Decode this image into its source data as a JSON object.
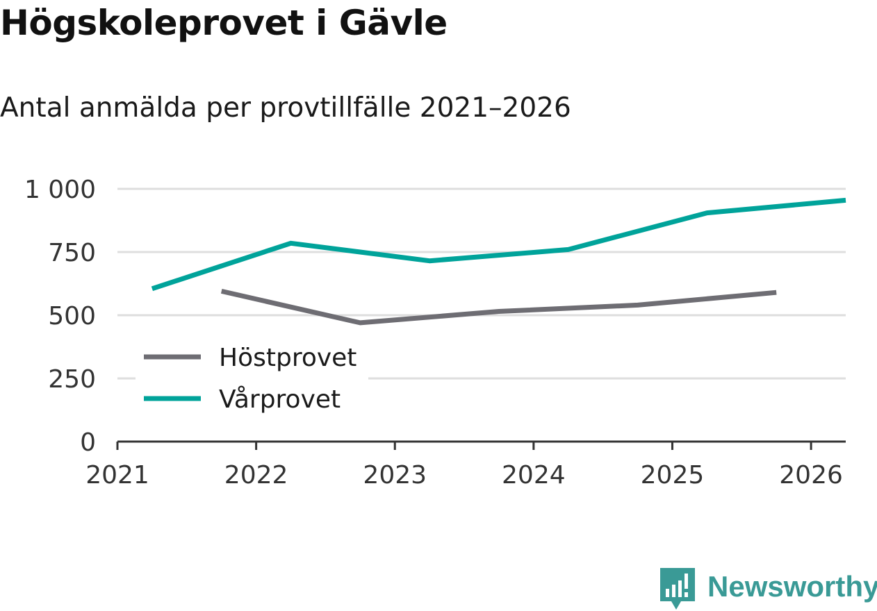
{
  "title": "Högskoleprovet i Gävle",
  "subtitle": "Antal anmälda per provtillfälle 2021–2026",
  "brand": {
    "name": "Newsworthy",
    "icon": "newsworthy-logo-icon",
    "color": "#3a9a96"
  },
  "chart_data": {
    "type": "line",
    "title": "Högskoleprovet i Gävle",
    "subtitle": "Antal anmälda per provtillfälle 2021–2026",
    "xlabel": "",
    "ylabel": "",
    "xlim": [
      2021,
      2026.25
    ],
    "ylim": [
      0,
      1000
    ],
    "x_ticks": [
      2021,
      2022,
      2023,
      2024,
      2025,
      2026
    ],
    "x_tick_labels": [
      "2021",
      "2022",
      "2023",
      "2024",
      "2025",
      "2026"
    ],
    "y_ticks": [
      0,
      250,
      500,
      750,
      1000
    ],
    "y_tick_labels": [
      "0",
      "250",
      "500",
      "750",
      "1 000"
    ],
    "grid": true,
    "legend_position": "lower-left",
    "series": [
      {
        "name": "Höstprovet",
        "color": "#6e6d73",
        "x": [
          2021.75,
          2022.75,
          2023.75,
          2024.75,
          2025.75
        ],
        "values": [
          595,
          470,
          515,
          540,
          590
        ]
      },
      {
        "name": "Vårprovet",
        "color": "#00a39a",
        "x": [
          2021.25,
          2022.25,
          2023.25,
          2024.25,
          2025.25,
          2026.25
        ],
        "values": [
          605,
          785,
          715,
          760,
          905,
          955
        ]
      }
    ]
  }
}
